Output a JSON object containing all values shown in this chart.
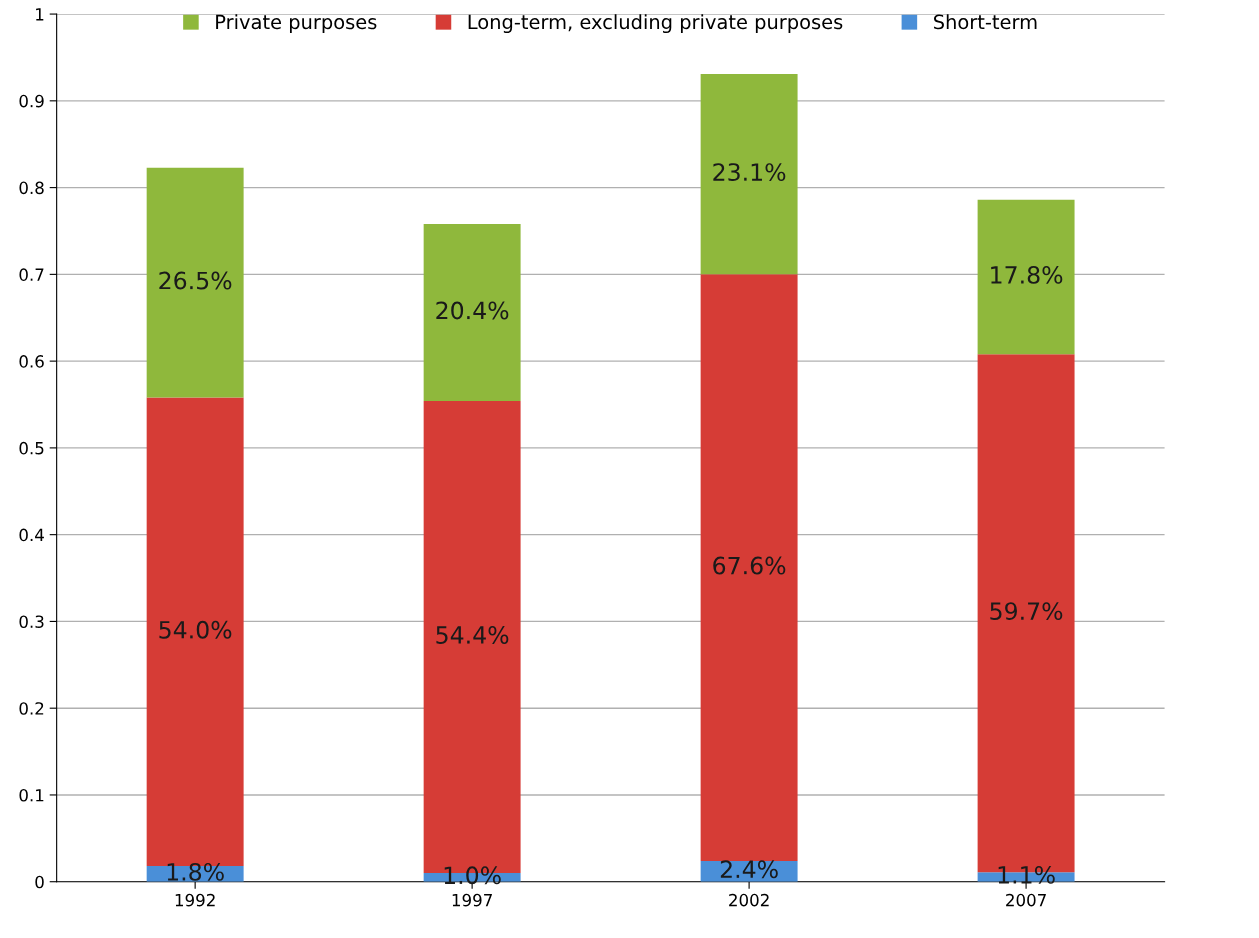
{
  "chart_data": {
    "type": "bar",
    "stacked": true,
    "categories": [
      "1992",
      "1997",
      "2002",
      "2007"
    ],
    "series": [
      {
        "name": "Short-term",
        "color": "#4a8fd8",
        "values": [
          0.018,
          0.01,
          0.024,
          0.011
        ],
        "value_labels": [
          "1.8%",
          "1.0%",
          "2.4%",
          "1.1%"
        ]
      },
      {
        "name": "Long-term, excluding private purposes",
        "color": "#d63c36",
        "values": [
          0.54,
          0.544,
          0.676,
          0.597
        ],
        "value_labels": [
          "54.0%",
          "54.4%",
          "67.6%",
          "59.7%"
        ]
      },
      {
        "name": "Private purposes",
        "color": "#8fb83c",
        "values": [
          0.265,
          0.204,
          0.231,
          0.178
        ],
        "value_labels": [
          "26.5%",
          "20.4%",
          "23.1%",
          "17.8%"
        ]
      }
    ],
    "ylim": [
      0,
      1
    ],
    "yticks": [
      0,
      0.1,
      0.2,
      0.3,
      0.4,
      0.5,
      0.6,
      0.7,
      0.8,
      0.9,
      1
    ],
    "grid": "y",
    "legend": "top"
  }
}
